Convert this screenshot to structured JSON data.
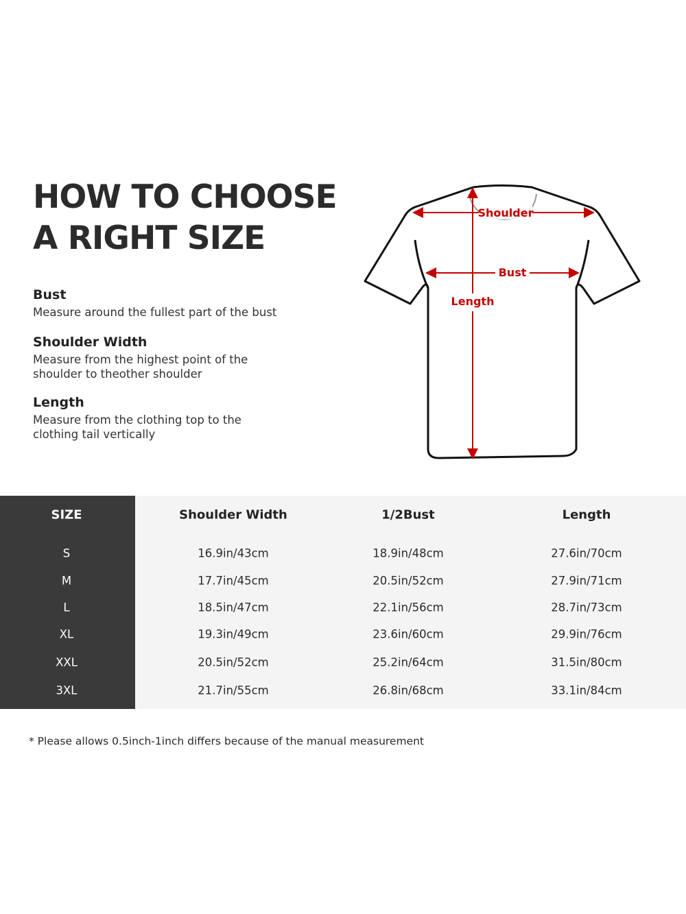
{
  "title": {
    "line1": "HOW TO CHOOSE",
    "line2": "A RIGHT SIZE"
  },
  "sections": [
    {
      "heading": "Bust",
      "text": "Measure around the fullest part of the bust"
    },
    {
      "heading": "Shoulder Width",
      "text": "Measure from the highest point of the shoulder to theother shoulder"
    },
    {
      "heading": "Length",
      "text": "Measure from the clothing top to the clothing tail vertically"
    }
  ],
  "diagram": {
    "shoulder_label": "Shoulder",
    "bust_label": "Bust",
    "length_label": "Length",
    "accent_color": "#c40000"
  },
  "table": {
    "headers": [
      "SIZE",
      "Shoulder Width",
      "1/2Bust",
      "Length"
    ],
    "rows": [
      [
        "S",
        "16.9in/43cm",
        "18.9in/48cm",
        "27.6in/70cm"
      ],
      [
        "M",
        "17.7in/45cm",
        "20.5in/52cm",
        "27.9in/71cm"
      ],
      [
        "L",
        "18.5in/47cm",
        "22.1in/56cm",
        "28.7in/73cm"
      ],
      [
        "XL",
        "19.3in/49cm",
        "23.6in/60cm",
        "29.9in/76cm"
      ],
      [
        "XXL",
        "20.5in/52cm",
        "25.2in/64cm",
        "31.5in/80cm"
      ],
      [
        "3XL",
        "21.7in/55cm",
        "26.8in/68cm",
        "33.1in/84cm"
      ]
    ]
  },
  "note": "* Please allows 0.5inch-1inch differs because of the  manual measurement"
}
